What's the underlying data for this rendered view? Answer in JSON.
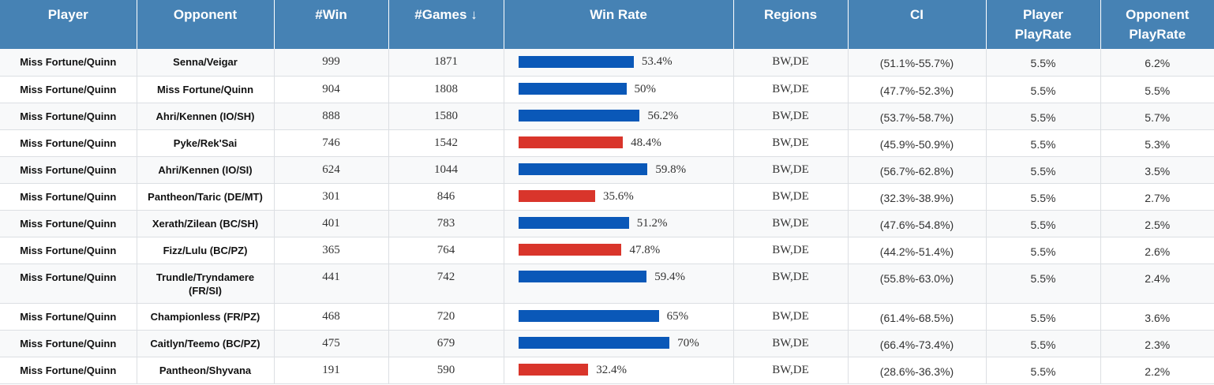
{
  "colors": {
    "header_bg": "#4682b4",
    "bar_high": "#0a58b8",
    "bar_low": "#d9352b"
  },
  "headers": {
    "player": "Player",
    "opponent": "Opponent",
    "win": "#Win",
    "games": "#Games",
    "games_sort_icon": "↓",
    "win_rate": "Win Rate",
    "regions": "Regions",
    "ci": "CI",
    "player_playrate_l1": "Player",
    "player_playrate_l2": "PlayRate",
    "opponent_playrate_l1": "Opponent",
    "opponent_playrate_l2": "PlayRate"
  },
  "rows": [
    {
      "player": "Miss Fortune/Quinn",
      "opponent": "Senna/Veigar",
      "win": "999",
      "games": "1871",
      "win_rate": 53.4,
      "win_rate_label": "53.4%",
      "regions": "BW,DE",
      "ci": "(51.1%-55.7%)",
      "player_playrate": "5.5%",
      "opponent_playrate": "6.2%"
    },
    {
      "player": "Miss Fortune/Quinn",
      "opponent": "Miss Fortune/Quinn",
      "win": "904",
      "games": "1808",
      "win_rate": 50,
      "win_rate_label": "50%",
      "regions": "BW,DE",
      "ci": "(47.7%-52.3%)",
      "player_playrate": "5.5%",
      "opponent_playrate": "5.5%"
    },
    {
      "player": "Miss Fortune/Quinn",
      "opponent": "Ahri/Kennen (IO/SH)",
      "win": "888",
      "games": "1580",
      "win_rate": 56.2,
      "win_rate_label": "56.2%",
      "regions": "BW,DE",
      "ci": "(53.7%-58.7%)",
      "player_playrate": "5.5%",
      "opponent_playrate": "5.7%"
    },
    {
      "player": "Miss Fortune/Quinn",
      "opponent": "Pyke/Rek'Sai",
      "win": "746",
      "games": "1542",
      "win_rate": 48.4,
      "win_rate_label": "48.4%",
      "regions": "BW,DE",
      "ci": "(45.9%-50.9%)",
      "player_playrate": "5.5%",
      "opponent_playrate": "5.3%"
    },
    {
      "player": "Miss Fortune/Quinn",
      "opponent": "Ahri/Kennen (IO/SI)",
      "win": "624",
      "games": "1044",
      "win_rate": 59.8,
      "win_rate_label": "59.8%",
      "regions": "BW,DE",
      "ci": "(56.7%-62.8%)",
      "player_playrate": "5.5%",
      "opponent_playrate": "3.5%"
    },
    {
      "player": "Miss Fortune/Quinn",
      "opponent": "Pantheon/Taric (DE/MT)",
      "win": "301",
      "games": "846",
      "win_rate": 35.6,
      "win_rate_label": "35.6%",
      "regions": "BW,DE",
      "ci": "(32.3%-38.9%)",
      "player_playrate": "5.5%",
      "opponent_playrate": "2.7%"
    },
    {
      "player": "Miss Fortune/Quinn",
      "opponent": "Xerath/Zilean (BC/SH)",
      "win": "401",
      "games": "783",
      "win_rate": 51.2,
      "win_rate_label": "51.2%",
      "regions": "BW,DE",
      "ci": "(47.6%-54.8%)",
      "player_playrate": "5.5%",
      "opponent_playrate": "2.5%"
    },
    {
      "player": "Miss Fortune/Quinn",
      "opponent": "Fizz/Lulu (BC/PZ)",
      "win": "365",
      "games": "764",
      "win_rate": 47.8,
      "win_rate_label": "47.8%",
      "regions": "BW,DE",
      "ci": "(44.2%-51.4%)",
      "player_playrate": "5.5%",
      "opponent_playrate": "2.6%"
    },
    {
      "player": "Miss Fortune/Quinn",
      "opponent": "Trundle/Tryndamere (FR/SI)",
      "win": "441",
      "games": "742",
      "win_rate": 59.4,
      "win_rate_label": "59.4%",
      "regions": "BW,DE",
      "ci": "(55.8%-63.0%)",
      "player_playrate": "5.5%",
      "opponent_playrate": "2.4%"
    },
    {
      "player": "Miss Fortune/Quinn",
      "opponent": "Championless (FR/PZ)",
      "win": "468",
      "games": "720",
      "win_rate": 65,
      "win_rate_label": "65%",
      "regions": "BW,DE",
      "ci": "(61.4%-68.5%)",
      "player_playrate": "5.5%",
      "opponent_playrate": "3.6%"
    },
    {
      "player": "Miss Fortune/Quinn",
      "opponent": "Caitlyn/Teemo (BC/PZ)",
      "win": "475",
      "games": "679",
      "win_rate": 70,
      "win_rate_label": "70%",
      "regions": "BW,DE",
      "ci": "(66.4%-73.4%)",
      "player_playrate": "5.5%",
      "opponent_playrate": "2.3%"
    },
    {
      "player": "Miss Fortune/Quinn",
      "opponent": "Pantheon/Shyvana",
      "win": "191",
      "games": "590",
      "win_rate": 32.4,
      "win_rate_label": "32.4%",
      "regions": "BW,DE",
      "ci": "(28.6%-36.3%)",
      "player_playrate": "5.5%",
      "opponent_playrate": "2.2%"
    }
  ]
}
